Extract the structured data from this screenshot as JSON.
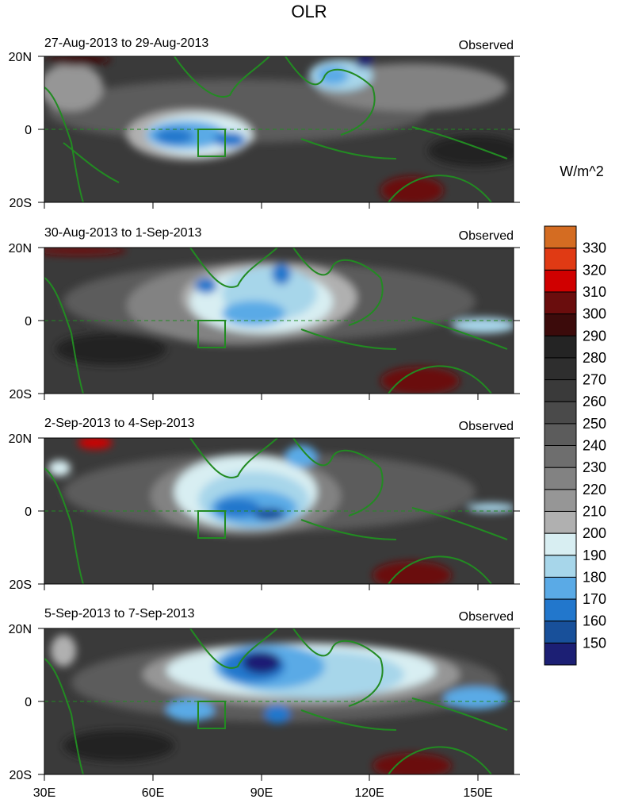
{
  "title": "OLR",
  "units": "W/m^2",
  "panels": [
    {
      "period": "27-Aug-2013 to 29-Aug-2013",
      "label": "Observed"
    },
    {
      "period": "30-Aug-2013 to 1-Sep-2013",
      "label": "Observed"
    },
    {
      "period": "2-Sep-2013 to 4-Sep-2013",
      "label": "Observed"
    },
    {
      "period": "5-Sep-2013 to 7-Sep-2013",
      "label": "Observed"
    }
  ],
  "lat_ticks": [
    "20N",
    "0",
    "20S"
  ],
  "lon_ticks": [
    "30E",
    "60E",
    "90E",
    "120E",
    "150E"
  ],
  "colorbar": {
    "levels": [
      "150",
      "160",
      "170",
      "180",
      "190",
      "200",
      "210",
      "220",
      "230",
      "240",
      "250",
      "260",
      "270",
      "280",
      "290",
      "300",
      "310",
      "320",
      "330"
    ],
    "colors": [
      "#1c1f74",
      "#18509a",
      "#2277cc",
      "#5aaae6",
      "#a7d6ea",
      "#d8eef2",
      "#b0b0b0",
      "#969696",
      "#828282",
      "#6e6e6e",
      "#5c5c5c",
      "#4a4a4a",
      "#3a3a3a",
      "#2e2e2e",
      "#242424",
      "#3c0b0b",
      "#6a0d0d",
      "#d00000",
      "#e03a14",
      "#d46c22"
    ]
  },
  "colors": {
    "coast": "#228b22",
    "box": "#228b22"
  }
}
